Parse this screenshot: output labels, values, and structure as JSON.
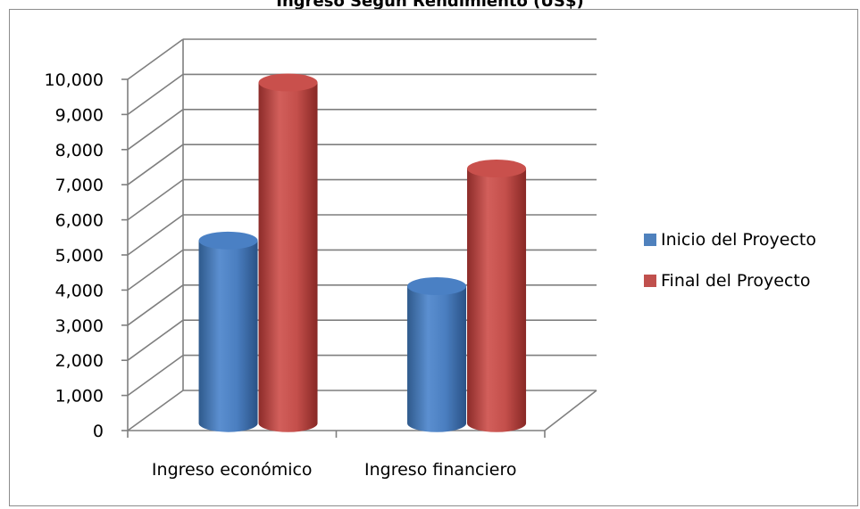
{
  "chart_data": {
    "type": "bar",
    "title": "Ingreso Según Rendimiento (US$)",
    "categories": [
      "Ingreso económico",
      "Ingreso financiero"
    ],
    "series": [
      {
        "name": "Inicio del Proyecto",
        "values": [
          5200,
          3900
        ],
        "color": "#4f81bd"
      },
      {
        "name": "Final del Proyecto",
        "values": [
          9700,
          7250
        ],
        "color": "#c0504d"
      }
    ],
    "ylim": [
      0,
      10000
    ],
    "yticks": [
      "0",
      "1,000",
      "2,000",
      "3,000",
      "4,000",
      "5,000",
      "6,000",
      "7,000",
      "8,000",
      "9,000",
      "10,000"
    ],
    "grid": true,
    "legend_position": "right",
    "style": "3d-cylinder"
  }
}
